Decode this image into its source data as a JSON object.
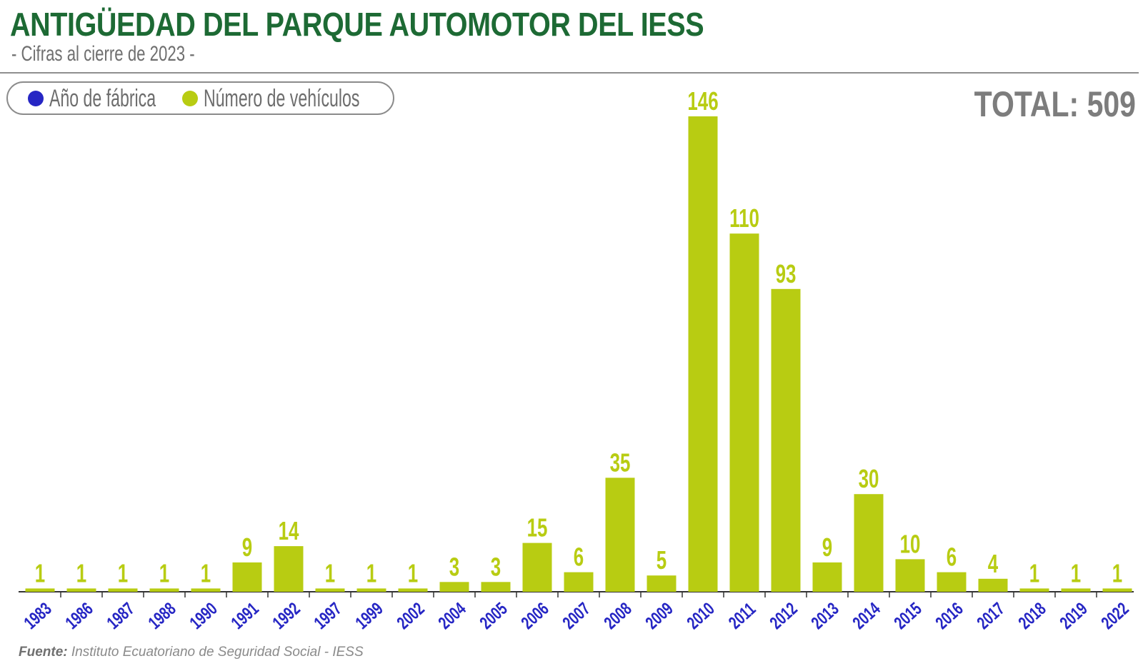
{
  "title": "ANTIGÜEDAD DEL PARQUE AUTOMOTOR DEL IESS",
  "subtitle": "- Cifras al cierre de 2023 -",
  "legend": {
    "year_label": "Año de fábrica",
    "count_label": "Número de vehículos"
  },
  "total_text": "TOTAL: 509",
  "source": {
    "label": "Fuente:",
    "text": "Instituto Ecuatoriano de Seguridad Social - IESS"
  },
  "colors": {
    "title": "#1d6a34",
    "year": "#2626c4",
    "bar": "#b8cc12",
    "axis": "#333333",
    "muted": "#7d7d7d"
  },
  "chart_data": {
    "type": "bar",
    "title": "ANTIGÜEDAD DEL PARQUE AUTOMOTOR DEL IESS",
    "subtitle": "- Cifras al cierre de 2023 -",
    "xlabel": "",
    "ylabel": "",
    "categories": [
      "1983",
      "1986",
      "1987",
      "1988",
      "1990",
      "1991",
      "1992",
      "1997",
      "1999",
      "2002",
      "2004",
      "2005",
      "2006",
      "2007",
      "2008",
      "2009",
      "2010",
      "2011",
      "2012",
      "2013",
      "2014",
      "2015",
      "2016",
      "2017",
      "2018",
      "2019",
      "2022"
    ],
    "values": [
      1,
      1,
      1,
      1,
      1,
      9,
      14,
      1,
      1,
      1,
      3,
      3,
      15,
      6,
      35,
      5,
      146,
      110,
      93,
      9,
      30,
      10,
      6,
      4,
      1,
      1,
      1
    ],
    "ylim": [
      0,
      146
    ],
    "grid": false,
    "legend": [
      "Año de fábrica",
      "Número de vehículos"
    ],
    "legend_position": "top-left"
  }
}
